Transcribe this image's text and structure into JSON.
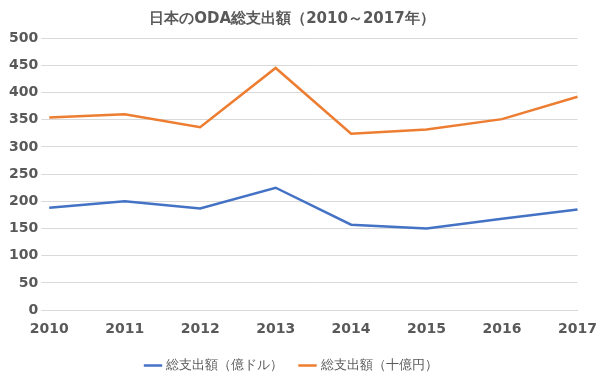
{
  "chart_data": {
    "type": "line",
    "title": "日本のODA総支出額（2010～2017年）",
    "categories": [
      "2010",
      "2011",
      "2012",
      "2013",
      "2014",
      "2015",
      "2016",
      "2017"
    ],
    "series": [
      {
        "name": "総支出額（億ドル）",
        "color": "#4472c4",
        "values": [
          188,
          200,
          187,
          225,
          157,
          150,
          168,
          185
        ]
      },
      {
        "name": "総支出額（十億円）",
        "color": "#ed7d31",
        "values": [
          354,
          360,
          336,
          445,
          324,
          332,
          351,
          392
        ]
      }
    ],
    "ylim": [
      0,
      500
    ],
    "yticks": [
      0,
      50,
      100,
      150,
      200,
      250,
      300,
      350,
      400,
      450,
      500
    ],
    "grid": true,
    "legend": "bottom"
  }
}
